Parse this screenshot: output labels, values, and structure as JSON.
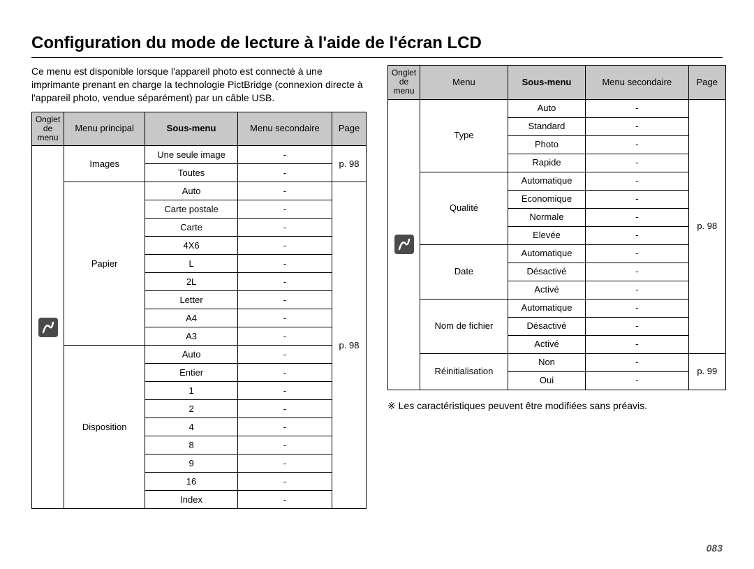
{
  "title": "Configuration du mode de lecture à l'aide de l'écran LCD",
  "intro": "Ce menu est disponible lorsque l'appareil photo est connecté à une imprimante prenant en charge la technologie PictBridge (connexion directe à l'appareil photo, vendue séparément) par un câble USB.",
  "note": "※  Les caractéristiques peuvent être modifiées sans préavis.",
  "page_number": "083",
  "visual": {
    "header_bg": "#c8c8c8",
    "border_color": "#000000",
    "text_color": "#000000",
    "font_size_body": 13,
    "font_size_title": 24,
    "icon_bg": "#4a4a4a",
    "icon_fg": "#ffffff"
  },
  "table1": {
    "headers": {
      "tab": "Onglet de\nmenu",
      "main": "Menu principal",
      "sub": "Sous-menu",
      "sec": "Menu secondaire",
      "page": "Page"
    },
    "groups": [
      {
        "main": "Images",
        "items": [
          "Une seule image",
          "Toutes"
        ],
        "page": "p. 98"
      },
      {
        "main": "Papier",
        "items": [
          "Auto",
          "Carte postale",
          "Carte",
          "4X6",
          "L",
          "2L",
          "Letter",
          "A4",
          "A3"
        ],
        "page": null
      },
      {
        "main": "Disposition",
        "items": [
          "Auto",
          "Entier",
          "1",
          "2",
          "4",
          "8",
          "9",
          "16",
          "Index"
        ],
        "page": "p. 98"
      }
    ]
  },
  "table2": {
    "headers": {
      "tab": "Onglet de\nmenu",
      "main": "Menu",
      "sub": "Sous-menu",
      "sec": "Menu secondaire",
      "page": "Page"
    },
    "groups": [
      {
        "main": "Type",
        "items": [
          "Auto",
          "Standard",
          "Photo",
          "Rapide"
        ],
        "page": null
      },
      {
        "main": "Qualité",
        "items": [
          "Automatique",
          "Economique",
          "Normale",
          "Elevée"
        ],
        "page": "p. 98"
      },
      {
        "main": "Date",
        "items": [
          "Automatique",
          "Désactivé",
          "Activé"
        ],
        "page": null
      },
      {
        "main": "Nom de fichier",
        "items": [
          "Automatique",
          "Désactivé",
          "Activé"
        ],
        "page": null
      },
      {
        "main": "Réinitialisation",
        "items": [
          "Non",
          "Oui"
        ],
        "page": "p. 99"
      }
    ]
  }
}
